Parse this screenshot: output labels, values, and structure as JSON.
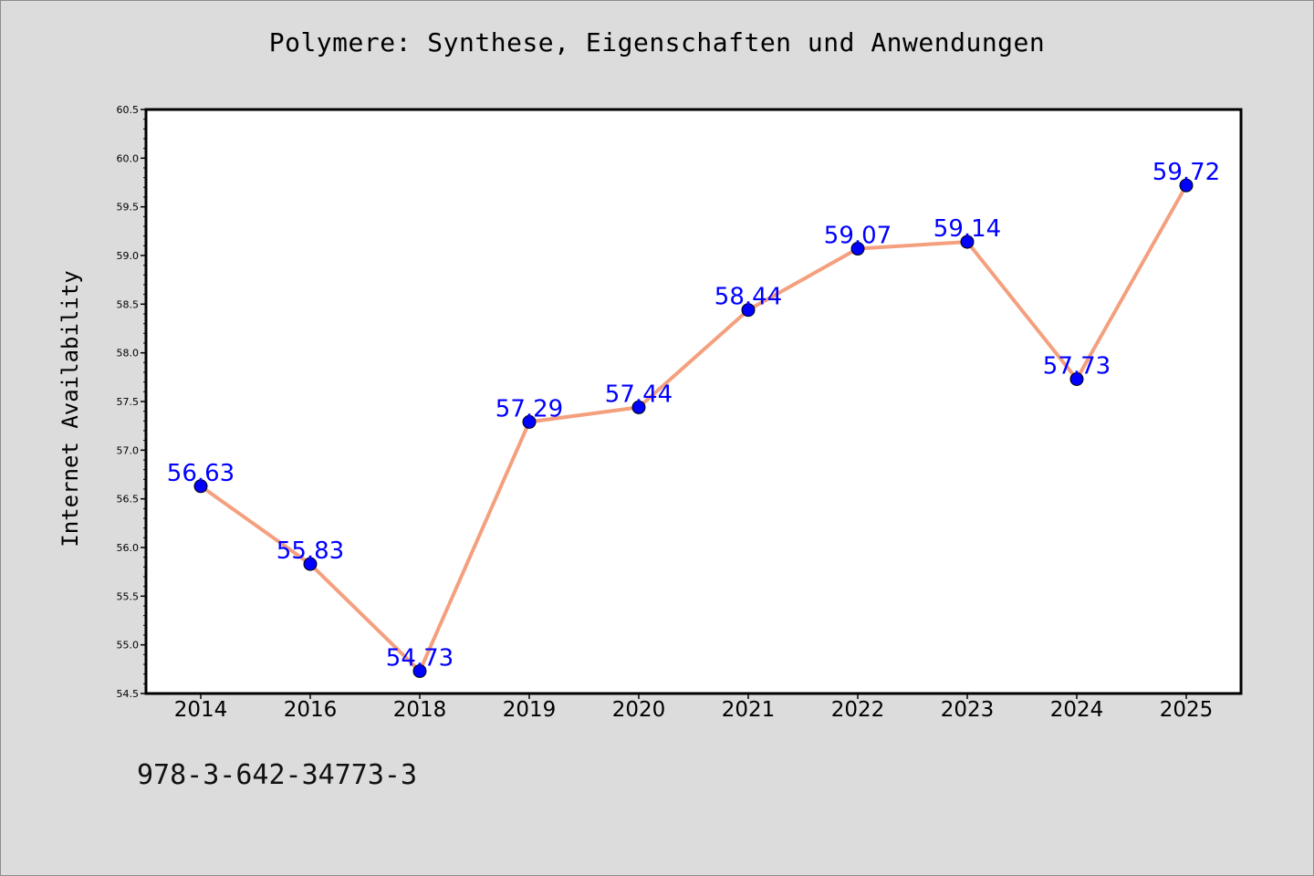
{
  "colors": {
    "background": "#dcdcdc",
    "plot_background": "#ffffff",
    "line": "#f4a07e",
    "marker": "#0000ff",
    "data_label": "#0000ff"
  },
  "footer": {
    "isbn": "978-3-642-34773-3"
  },
  "chart_data": {
    "type": "line",
    "title": "Polymere: Synthese, Eigenschaften und Anwendungen",
    "xlabel": "",
    "ylabel": "Internet Availability",
    "categories": [
      "2014",
      "2016",
      "2018",
      "2019",
      "2020",
      "2021",
      "2022",
      "2023",
      "2024",
      "2025"
    ],
    "series": [
      {
        "values": [
          56.63,
          55.83,
          54.73,
          57.29,
          57.44,
          58.44,
          59.07,
          59.14,
          57.73,
          59.72
        ],
        "labels": [
          "56.63",
          "55.83",
          "54.73",
          "57.29",
          "57.44",
          "58.44",
          "59.07",
          "59.14",
          "57.73",
          "59.72"
        ]
      }
    ],
    "ylim": [
      54.5,
      60.5
    ],
    "yticks": [
      54.5,
      55.0,
      55.5,
      56.0,
      56.5,
      57.0,
      57.5,
      58.0,
      58.5,
      59.0,
      59.5,
      60.0,
      60.5
    ],
    "ytick_labels": [
      "54.5",
      "55.0",
      "55.5",
      "56.0",
      "56.5",
      "57.0",
      "57.5",
      "58.0",
      "58.5",
      "59.0",
      "59.5",
      "60.0",
      "60.5"
    ],
    "grid": false,
    "legend": "none",
    "data_labels": true
  }
}
